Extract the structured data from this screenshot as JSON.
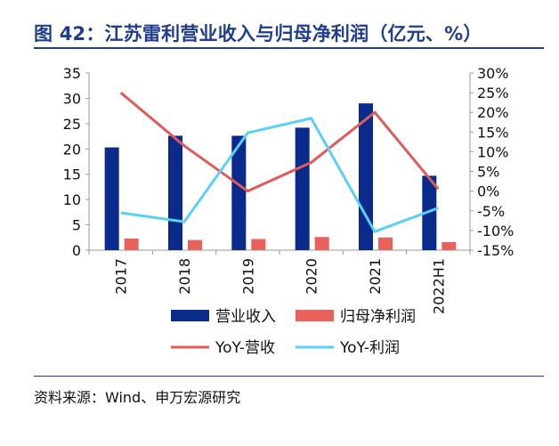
{
  "figure_title": "图 42：江苏雷利营业收入与归母净利润（亿元、%）",
  "source_note": "资料来源：Wind、申万宏源研究",
  "colors": {
    "title": "#1F3D8F",
    "revenue_bar": "#0A2A8C",
    "profit_bar": "#E8625C",
    "yoy_revenue_line": "#E05A5A",
    "yoy_profit_line": "#5BD0F5",
    "axis": "#9A9A9A"
  },
  "chart_data": {
    "type": "bar",
    "categories": [
      "2017",
      "2018",
      "2019",
      "2020",
      "2021",
      "2022H1"
    ],
    "series": [
      {
        "name": "营业收入",
        "type": "bar",
        "axis": "left",
        "values": [
          20.3,
          22.6,
          22.6,
          24.2,
          29.0,
          14.7
        ]
      },
      {
        "name": "归母净利润",
        "type": "bar",
        "axis": "left",
        "values": [
          2.3,
          2.0,
          2.2,
          2.6,
          2.5,
          1.6
        ]
      },
      {
        "name": "YoY-营收",
        "type": "line",
        "axis": "right",
        "values": [
          25.0,
          11.5,
          0.0,
          7.3,
          20.0,
          0.5
        ]
      },
      {
        "name": "YoY-利润",
        "type": "line",
        "axis": "right",
        "values": [
          -5.5,
          -7.8,
          14.8,
          18.5,
          -10.3,
          -4.3
        ]
      }
    ],
    "y_left": {
      "min": 0,
      "max": 35,
      "ticks": [
        0,
        5,
        10,
        15,
        20,
        25,
        30,
        35
      ]
    },
    "y_right": {
      "min": -15,
      "max": 30,
      "ticks": [
        "-15%",
        "-10%",
        "-5%",
        "0%",
        "5%",
        "10%",
        "15%",
        "20%",
        "25%",
        "30%"
      ]
    },
    "legend_position": "bottom",
    "grid": false
  }
}
